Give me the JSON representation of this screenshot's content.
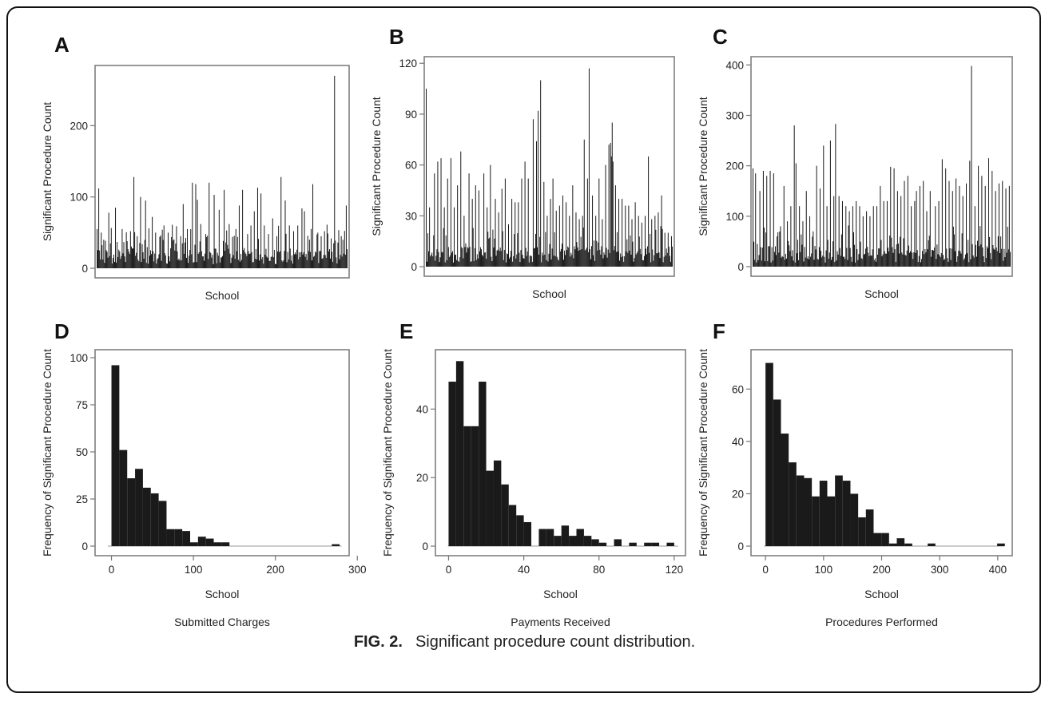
{
  "figure": {
    "caption_label": "FIG. 2.",
    "caption_text": "Significant procedure count distribution."
  },
  "colors": {
    "bar": "#1a1a1a",
    "axis": "#777777",
    "frame": "#111111"
  },
  "chart_data": [
    {
      "panel": "A",
      "type": "bar",
      "title": "",
      "xlabel": "School",
      "ylabel": "Significant Procedure Count",
      "ylim": [
        0,
        280
      ],
      "yticks": [
        0,
        100,
        200
      ],
      "n_schools": 300,
      "peaks": [
        [
          0,
          55
        ],
        [
          2,
          112
        ],
        [
          8,
          40
        ],
        [
          14,
          78
        ],
        [
          22,
          85
        ],
        [
          30,
          55
        ],
        [
          36,
          38
        ],
        [
          40,
          52
        ],
        [
          44,
          128
        ],
        [
          48,
          45
        ],
        [
          52,
          100
        ],
        [
          58,
          95
        ],
        [
          62,
          56
        ],
        [
          66,
          72
        ],
        [
          70,
          50
        ],
        [
          75,
          44
        ],
        [
          80,
          60
        ],
        [
          85,
          50
        ],
        [
          90,
          61
        ],
        [
          95,
          52
        ],
        [
          100,
          45
        ],
        [
          103,
          90
        ],
        [
          108,
          55
        ],
        [
          114,
          120
        ],
        [
          118,
          118
        ],
        [
          120,
          96
        ],
        [
          124,
          62
        ],
        [
          130,
          48
        ],
        [
          134,
          120
        ],
        [
          140,
          103
        ],
        [
          146,
          82
        ],
        [
          152,
          110
        ],
        [
          158,
          62
        ],
        [
          162,
          44
        ],
        [
          166,
          55
        ],
        [
          170,
          88
        ],
        [
          174,
          110
        ],
        [
          180,
          48
        ],
        [
          184,
          60
        ],
        [
          188,
          80
        ],
        [
          192,
          113
        ],
        [
          196,
          105
        ],
        [
          200,
          60
        ],
        [
          205,
          48
        ],
        [
          210,
          70
        ],
        [
          215,
          45
        ],
        [
          220,
          128
        ],
        [
          225,
          95
        ],
        [
          230,
          60
        ],
        [
          235,
          52
        ],
        [
          240,
          60
        ],
        [
          245,
          84
        ],
        [
          248,
          80
        ],
        [
          254,
          40
        ],
        [
          258,
          118
        ],
        [
          264,
          50
        ],
        [
          268,
          45
        ],
        [
          272,
          52
        ],
        [
          276,
          40
        ],
        [
          280,
          42
        ],
        [
          284,
          270
        ],
        [
          288,
          36
        ],
        [
          292,
          45
        ],
        [
          294,
          40
        ],
        [
          298,
          88
        ]
      ]
    },
    {
      "panel": "B",
      "type": "bar",
      "title": "",
      "xlabel": "School",
      "ylabel": "Significant Procedure Count",
      "ylim": [
        0,
        122
      ],
      "yticks": [
        0,
        30,
        60,
        90,
        120
      ],
      "n_schools": 300,
      "peaks": [
        [
          0,
          105
        ],
        [
          4,
          35
        ],
        [
          10,
          55
        ],
        [
          14,
          62
        ],
        [
          18,
          64
        ],
        [
          22,
          35
        ],
        [
          26,
          52
        ],
        [
          30,
          64
        ],
        [
          34,
          35
        ],
        [
          38,
          48
        ],
        [
          42,
          68
        ],
        [
          46,
          30
        ],
        [
          52,
          55
        ],
        [
          56,
          40
        ],
        [
          60,
          48
        ],
        [
          64,
          45
        ],
        [
          70,
          55
        ],
        [
          74,
          35
        ],
        [
          78,
          60
        ],
        [
          84,
          40
        ],
        [
          88,
          32
        ],
        [
          92,
          46
        ],
        [
          96,
          52
        ],
        [
          100,
          25
        ],
        [
          104,
          40
        ],
        [
          108,
          38
        ],
        [
          112,
          38
        ],
        [
          116,
          52
        ],
        [
          120,
          62
        ],
        [
          124,
          52
        ],
        [
          130,
          87
        ],
        [
          134,
          74
        ],
        [
          136,
          92
        ],
        [
          139,
          110
        ],
        [
          143,
          50
        ],
        [
          147,
          30
        ],
        [
          151,
          40
        ],
        [
          154,
          52
        ],
        [
          158,
          33
        ],
        [
          162,
          36
        ],
        [
          166,
          42
        ],
        [
          170,
          38
        ],
        [
          174,
          30
        ],
        [
          178,
          48
        ],
        [
          182,
          32
        ],
        [
          186,
          28
        ],
        [
          190,
          30
        ],
        [
          192,
          75
        ],
        [
          196,
          52
        ],
        [
          198,
          117
        ],
        [
          202,
          42
        ],
        [
          206,
          30
        ],
        [
          210,
          52
        ],
        [
          214,
          28
        ],
        [
          218,
          60
        ],
        [
          222,
          72
        ],
        [
          224,
          73
        ],
        [
          225,
          65
        ],
        [
          226,
          85
        ],
        [
          227,
          62
        ],
        [
          230,
          48
        ],
        [
          234,
          40
        ],
        [
          238,
          40
        ],
        [
          242,
          36
        ],
        [
          246,
          36
        ],
        [
          250,
          28
        ],
        [
          254,
          38
        ],
        [
          258,
          30
        ],
        [
          262,
          26
        ],
        [
          266,
          30
        ],
        [
          270,
          65
        ],
        [
          274,
          28
        ],
        [
          278,
          30
        ],
        [
          282,
          32
        ],
        [
          286,
          42
        ],
        [
          290,
          20
        ],
        [
          294,
          20
        ],
        [
          298,
          18
        ]
      ]
    },
    {
      "panel": "C",
      "type": "bar",
      "title": "",
      "xlabel": "School",
      "ylabel": "Significant Procedure Count",
      "ylim": [
        0,
        410
      ],
      "yticks": [
        0,
        100,
        200,
        300,
        400
      ],
      "n_schools": 300,
      "peaks": [
        [
          0,
          195
        ],
        [
          3,
          185
        ],
        [
          8,
          150
        ],
        [
          12,
          190
        ],
        [
          16,
          180
        ],
        [
          20,
          190
        ],
        [
          24,
          185
        ],
        [
          28,
          60
        ],
        [
          32,
          80
        ],
        [
          36,
          160
        ],
        [
          40,
          90
        ],
        [
          44,
          120
        ],
        [
          48,
          280
        ],
        [
          50,
          205
        ],
        [
          54,
          120
        ],
        [
          58,
          90
        ],
        [
          62,
          150
        ],
        [
          66,
          100
        ],
        [
          70,
          70
        ],
        [
          74,
          200
        ],
        [
          78,
          155
        ],
        [
          82,
          240
        ],
        [
          86,
          120
        ],
        [
          90,
          250
        ],
        [
          94,
          140
        ],
        [
          96,
          283
        ],
        [
          100,
          140
        ],
        [
          104,
          130
        ],
        [
          108,
          120
        ],
        [
          112,
          110
        ],
        [
          116,
          120
        ],
        [
          120,
          130
        ],
        [
          124,
          120
        ],
        [
          128,
          100
        ],
        [
          132,
          110
        ],
        [
          136,
          100
        ],
        [
          140,
          120
        ],
        [
          144,
          120
        ],
        [
          148,
          160
        ],
        [
          152,
          130
        ],
        [
          156,
          130
        ],
        [
          160,
          198
        ],
        [
          164,
          195
        ],
        [
          168,
          150
        ],
        [
          172,
          140
        ],
        [
          176,
          170
        ],
        [
          180,
          180
        ],
        [
          184,
          120
        ],
        [
          188,
          130
        ],
        [
          190,
          150
        ],
        [
          194,
          160
        ],
        [
          198,
          170
        ],
        [
          202,
          110
        ],
        [
          206,
          150
        ],
        [
          212,
          120
        ],
        [
          216,
          130
        ],
        [
          220,
          213
        ],
        [
          224,
          195
        ],
        [
          228,
          170
        ],
        [
          232,
          150
        ],
        [
          236,
          175
        ],
        [
          240,
          160
        ],
        [
          244,
          140
        ],
        [
          248,
          165
        ],
        [
          252,
          210
        ],
        [
          254,
          398
        ],
        [
          258,
          120
        ],
        [
          262,
          200
        ],
        [
          266,
          180
        ],
        [
          270,
          160
        ],
        [
          274,
          215
        ],
        [
          278,
          190
        ],
        [
          282,
          150
        ],
        [
          286,
          165
        ],
        [
          290,
          170
        ],
        [
          294,
          155
        ],
        [
          298,
          160
        ]
      ]
    },
    {
      "panel": "D",
      "type": "bar",
      "title": "",
      "xlabel": "School",
      "sublabel": "Submitted Charges",
      "ylabel": "Frequency of Significant Procedure Count",
      "xlim": [
        -20,
        290
      ],
      "ylim": [
        0,
        100
      ],
      "xticks": [
        0,
        100,
        200,
        300
      ],
      "yticks": [
        0,
        25,
        50,
        75,
        100
      ],
      "bin_width": 9.6,
      "bin_start": 0,
      "values": [
        96,
        51,
        36,
        41,
        31,
        28,
        24,
        9,
        9,
        8,
        2,
        5,
        4,
        2,
        2,
        0,
        0,
        0,
        0,
        0,
        0,
        0,
        0,
        0,
        0,
        0,
        0,
        0,
        1
      ]
    },
    {
      "panel": "E",
      "type": "bar",
      "title": "",
      "xlabel": "School",
      "sublabel": "Payments Received",
      "ylabel": "Frequency of Significant Procedure Count",
      "xlim": [
        -7,
        126
      ],
      "ylim": [
        0,
        55
      ],
      "xticks": [
        0,
        40,
        80,
        120
      ],
      "yticks": [
        0,
        20,
        40
      ],
      "bin_width": 4,
      "bin_start": 0,
      "values": [
        48,
        54,
        35,
        35,
        48,
        22,
        25,
        18,
        12,
        9,
        7,
        0,
        5,
        5,
        3,
        6,
        3,
        5,
        3,
        2,
        1,
        0,
        2,
        0,
        1,
        0,
        1,
        1,
        0,
        1
      ]
    },
    {
      "panel": "F",
      "type": "bar",
      "title": "",
      "xlabel": "School",
      "sublabel": "Procedures Performed",
      "ylabel": "Frequency of Significant Procedure Count",
      "xlim": [
        -25,
        425
      ],
      "ylim": [
        0,
        72
      ],
      "xticks": [
        0,
        100,
        200,
        300,
        400
      ],
      "yticks": [
        0,
        20,
        40,
        60
      ],
      "bin_width": 13.3,
      "bin_start": 0,
      "values": [
        70,
        56,
        43,
        32,
        27,
        26,
        19,
        25,
        19,
        27,
        25,
        20,
        11,
        14,
        5,
        5,
        1,
        3,
        1,
        0,
        0,
        1,
        0,
        0,
        0,
        0,
        0,
        0,
        0,
        0,
        1
      ]
    }
  ]
}
